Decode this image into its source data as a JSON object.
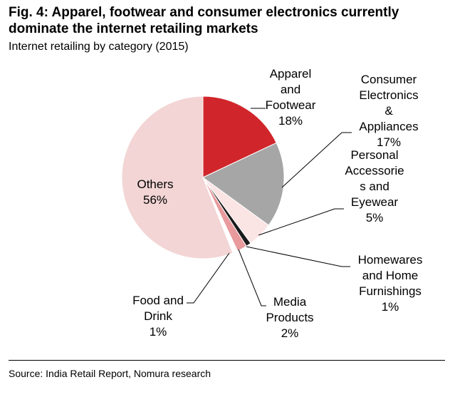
{
  "figure": {
    "title_lines": [
      "Fig. 4: Apparel, footwear and consumer electronics currently",
      "dominate the internet retailing markets"
    ],
    "subtitle": "Internet retailing by category (2015)",
    "source": "Source: India Retail Report, Nomura research"
  },
  "chart_data": {
    "type": "pie",
    "title": "Fig. 4: Apparel, footwear and consumer electronics currently dominate the internet retailing markets",
    "subtitle": "Internet retailing by category (2015)",
    "start_angle_deg": 0,
    "direction": "clockwise",
    "slices": [
      {
        "name": "Apparel and Footwear",
        "value": 18,
        "label": "18%",
        "color": "#d0262b",
        "label_lines": [
          "Apparel",
          "and",
          "Footwear",
          "18%"
        ]
      },
      {
        "name": "Consumer Electronics & Appliances",
        "value": 17,
        "label": "17%",
        "color": "#a6a6a6",
        "label_lines": [
          "Consumer",
          "Electronics",
          "&",
          "Appliances",
          "17%"
        ]
      },
      {
        "name": "Personal Accessories and Eyewear",
        "value": 5,
        "label": "5%",
        "color": "#fbe4e4",
        "label_lines": [
          "Personal",
          "Accessorie",
          "s and",
          "Eyewear",
          "5%"
        ]
      },
      {
        "name": "Homewares and Home Furnishings",
        "value": 1,
        "label": "1%",
        "color": "#1a1a1a",
        "label_lines": [
          "Homewares",
          "and Home",
          "Furnishings",
          "1%"
        ]
      },
      {
        "name": "Media Products",
        "value": 2,
        "label": "2%",
        "color": "#e89a9d",
        "label_lines": [
          "Media",
          "Products",
          "2%"
        ]
      },
      {
        "name": "Food and Drink",
        "value": 1,
        "label": "1%",
        "color": "#ffffff",
        "label_lines": [
          "Food and",
          "Drink",
          "1%"
        ]
      },
      {
        "name": "Others",
        "value": 56,
        "label": "56%",
        "color": "#f3d5d5",
        "label_lines": [
          "Others",
          "56%"
        ]
      }
    ]
  }
}
